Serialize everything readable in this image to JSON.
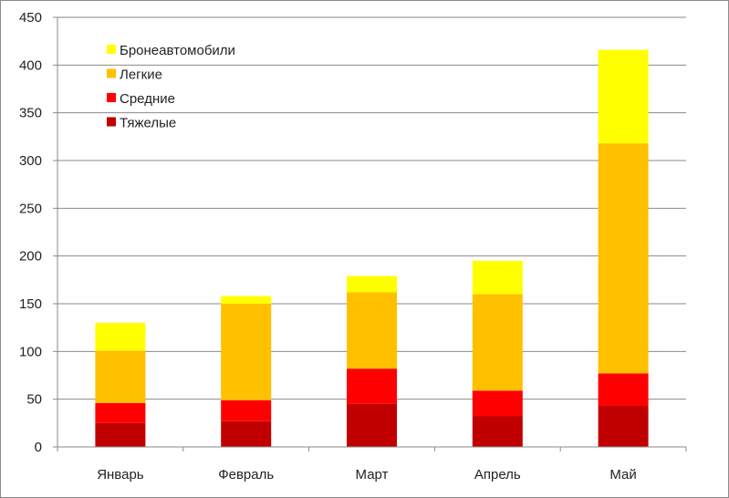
{
  "chart_data": {
    "type": "bar",
    "stacked": true,
    "categories": [
      "Январь",
      "Февраль",
      "Март",
      "Апрель",
      "Май"
    ],
    "series": [
      {
        "name": "Тяжелые",
        "color": "#C00000",
        "values": [
          25,
          27,
          45,
          32,
          43
        ]
      },
      {
        "name": "Средние",
        "color": "#FF0000",
        "values": [
          21,
          22,
          37,
          27,
          34
        ]
      },
      {
        "name": "Легкие",
        "color": "#FFC000",
        "values": [
          55,
          101,
          80,
          101,
          241
        ]
      },
      {
        "name": "Бронеавтомобили",
        "color": "#FFFF00",
        "values": [
          29,
          8,
          17,
          35,
          98
        ]
      }
    ],
    "yticks": [
      "0",
      "50",
      "100",
      "150",
      "200",
      "250",
      "300",
      "350",
      "400",
      "450"
    ],
    "ylim": [
      0,
      450
    ],
    "grid": true,
    "legend_position": "top-left",
    "legend_order": [
      "Бронеавтомобили",
      "Легкие",
      "Средние",
      "Тяжелые"
    ],
    "title": "",
    "xlabel": "",
    "ylabel": ""
  }
}
